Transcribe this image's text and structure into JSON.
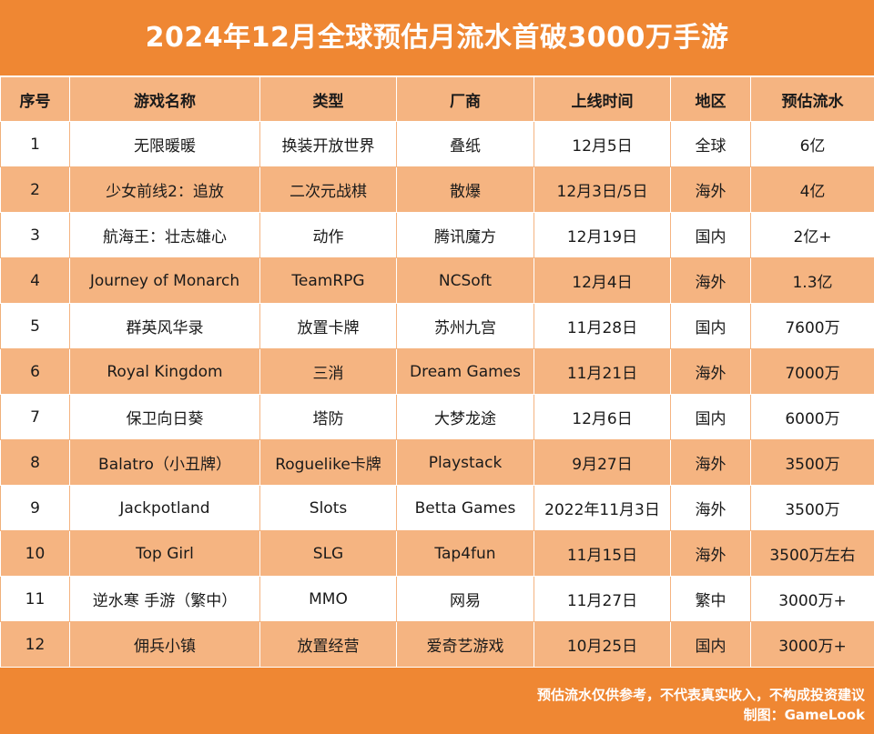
{
  "title": "2024年12月全球预估月流水首破3000万手游",
  "columns": [
    "序号",
    "游戏名称",
    "类型",
    "厂商",
    "上线时间",
    "地区",
    "预估流水"
  ],
  "rows": [
    [
      "1",
      "无限暖暖",
      "换装开放世界",
      "叠纸",
      "12月5日",
      "全球",
      "6亿"
    ],
    [
      "2",
      "少女前线2：追放",
      "二次元战棋",
      "散爆",
      "12月3日/5日",
      "海外",
      "4亿"
    ],
    [
      "3",
      "航海王：壮志雄心",
      "动作",
      "腾讯魔方",
      "12月19日",
      "国内",
      "2亿+"
    ],
    [
      "4",
      "Journey of Monarch",
      "TeamRPG",
      "NCSoft",
      "12月4日",
      "海外",
      "1.3亿"
    ],
    [
      "5",
      "群英风华录",
      "放置卡牌",
      "苏州九宫",
      "11月28日",
      "国内",
      "7600万"
    ],
    [
      "6",
      "Royal Kingdom",
      "三消",
      "Dream Games",
      "11月21日",
      "海外",
      "7000万"
    ],
    [
      "7",
      "保卫向日葵",
      "塔防",
      "大梦龙途",
      "12月6日",
      "国内",
      "6000万"
    ],
    [
      "8",
      "Balatro（小丑牌）",
      "Roguelike卡牌",
      "Playstack",
      "9月27日",
      "海外",
      "3500万"
    ],
    [
      "9",
      "Jackpotland",
      "Slots",
      "Betta Games",
      "2022年11月3日",
      "海外",
      "3500万"
    ],
    [
      "10",
      "Top Girl",
      "SLG",
      "Tap4fun",
      "11月15日",
      "海外",
      "3500万左右"
    ],
    [
      "11",
      "逆水寒 手游（繁中）",
      "MMO",
      "网易",
      "11月27日",
      "繁中",
      "3000万+"
    ],
    [
      "12",
      "佣兵小镇",
      "放置经营",
      "爱奇艺游戏",
      "10月25日",
      "国内",
      "3000万+"
    ]
  ],
  "footer": {
    "disclaimer": "预估流水仅供参考，不代表真实收入，不构成投资建议",
    "credit": "制图：GameLook"
  },
  "colors": {
    "header_orange": "#ef8733",
    "band_orange": "#f5b481",
    "white": "#ffffff"
  }
}
